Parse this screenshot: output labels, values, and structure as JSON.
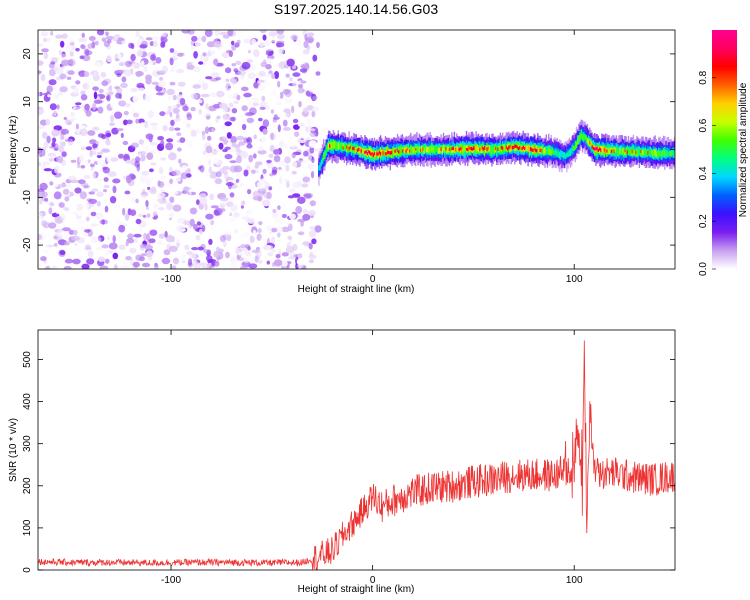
{
  "title": "S197.2025.140.14.56.G03",
  "chart_data": [
    {
      "type": "heatmap",
      "xlabel": "Height of straight line (km)",
      "ylabel": "Frequency (Hz)",
      "xlim": [
        -166,
        150
      ],
      "ylim": [
        -25,
        25
      ],
      "xticks": [
        -100,
        0,
        100
      ],
      "yticks": [
        -20,
        -10,
        0,
        10,
        20
      ],
      "colorbar": {
        "label": "Normalized spectral amplitude",
        "range": [
          0,
          1
        ],
        "ticks": [
          0.0,
          0.2,
          0.4,
          0.6,
          0.8
        ],
        "tick_labels": [
          "0.0",
          "0.2",
          "0.4",
          "0.6",
          "0.8"
        ],
        "colormap": [
          "#ffffff",
          "#c8a0f0",
          "#7a1ef0",
          "#3b10ff",
          "#0060ff",
          "#00d8ff",
          "#00ff80",
          "#40ff00",
          "#c8ff00",
          "#ffd000",
          "#ff6000",
          "#ff0000",
          "#ff0060",
          "#ff0090"
        ]
      },
      "noise_region": {
        "x_range": [
          -166,
          -27
        ],
        "description_level": 0.15
      },
      "ridge": {
        "x": [
          -27,
          -22,
          -15,
          -8,
          0,
          10,
          20,
          30,
          40,
          50,
          60,
          70,
          80,
          90,
          95,
          100,
          103,
          105,
          110,
          120,
          130,
          140,
          150
        ],
        "freq_hz": [
          -4,
          1,
          0.5,
          0,
          -1,
          -0.5,
          0,
          0,
          0,
          0.2,
          0,
          0.5,
          0,
          -0.5,
          -1.5,
          0.5,
          3,
          2.5,
          0,
          -0.3,
          -0.5,
          -0.8,
          -0.8
        ],
        "peak_amplitude": [
          0.5,
          0.8,
          0.7,
          0.8,
          0.9,
          0.8,
          0.75,
          0.7,
          0.8,
          0.85,
          0.75,
          0.8,
          0.85,
          0.6,
          0.5,
          0.6,
          0.7,
          0.6,
          0.9,
          0.75,
          0.7,
          0.7,
          0.6
        ]
      }
    },
    {
      "type": "line",
      "xlabel": "Height of straight line (km)",
      "ylabel": "SNR (10 * v/v)",
      "xlim": [
        -166,
        150
      ],
      "ylim": [
        0,
        570
      ],
      "xticks": [
        -100,
        0,
        100
      ],
      "yticks": [
        0,
        100,
        200,
        300,
        400,
        500
      ],
      "line_color": "#ee3333",
      "series": [
        {
          "x": [
            -166,
            -150,
            -130,
            -110,
            -90,
            -70,
            -50,
            -35,
            -28,
            -20,
            -15,
            -10,
            -5,
            0,
            5,
            10,
            20,
            30,
            40,
            50,
            60,
            70,
            80,
            90,
            95,
            100,
            102,
            104,
            105,
            106,
            108,
            110,
            115,
            120,
            130,
            140,
            150
          ],
          "values": [
            20,
            18,
            18,
            17,
            18,
            18,
            17,
            18,
            30,
            45,
            80,
            110,
            140,
            175,
            150,
            165,
            185,
            195,
            200,
            210,
            215,
            225,
            225,
            225,
            235,
            240,
            330,
            180,
            560,
            110,
            380,
            230,
            230,
            230,
            220,
            215,
            225
          ]
        }
      ]
    }
  ]
}
